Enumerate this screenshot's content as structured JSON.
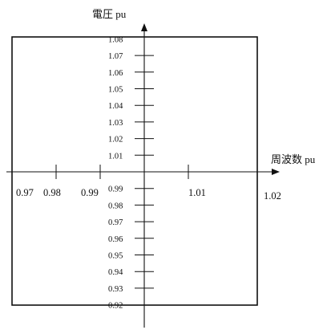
{
  "axes": {
    "y_title": "電圧 pu",
    "x_title": "周波数 pu",
    "y_ticks": [
      {
        "value": 1.08,
        "label": "1.08"
      },
      {
        "value": 1.07,
        "label": "1.07"
      },
      {
        "value": 1.06,
        "label": "1.06"
      },
      {
        "value": 1.05,
        "label": "1.05"
      },
      {
        "value": 1.04,
        "label": "1.04"
      },
      {
        "value": 1.03,
        "label": "1.03"
      },
      {
        "value": 1.02,
        "label": "1.02"
      },
      {
        "value": 1.01,
        "label": "1.01"
      },
      {
        "value": 0.99,
        "label": "0.99"
      },
      {
        "value": 0.98,
        "label": "0.98"
      },
      {
        "value": 0.97,
        "label": "0.97"
      },
      {
        "value": 0.96,
        "label": "0.96"
      },
      {
        "value": 0.95,
        "label": "0.95"
      },
      {
        "value": 0.94,
        "label": "0.94"
      },
      {
        "value": 0.93,
        "label": "0.93"
      },
      {
        "value": 0.92,
        "label": "0.92"
      }
    ],
    "x_ticks": [
      {
        "value": 0.97,
        "label": "0.97"
      },
      {
        "value": 0.98,
        "label": "0.98"
      },
      {
        "value": 0.99,
        "label": "0.99"
      },
      {
        "value": 1.01,
        "label": "1.01"
      },
      {
        "value": 1.02,
        "label": "1.02"
      }
    ]
  },
  "operating_region": {
    "voltage_range": [
      0.925,
      1.08
    ],
    "frequency_range": [
      0.97,
      1.02
    ]
  }
}
